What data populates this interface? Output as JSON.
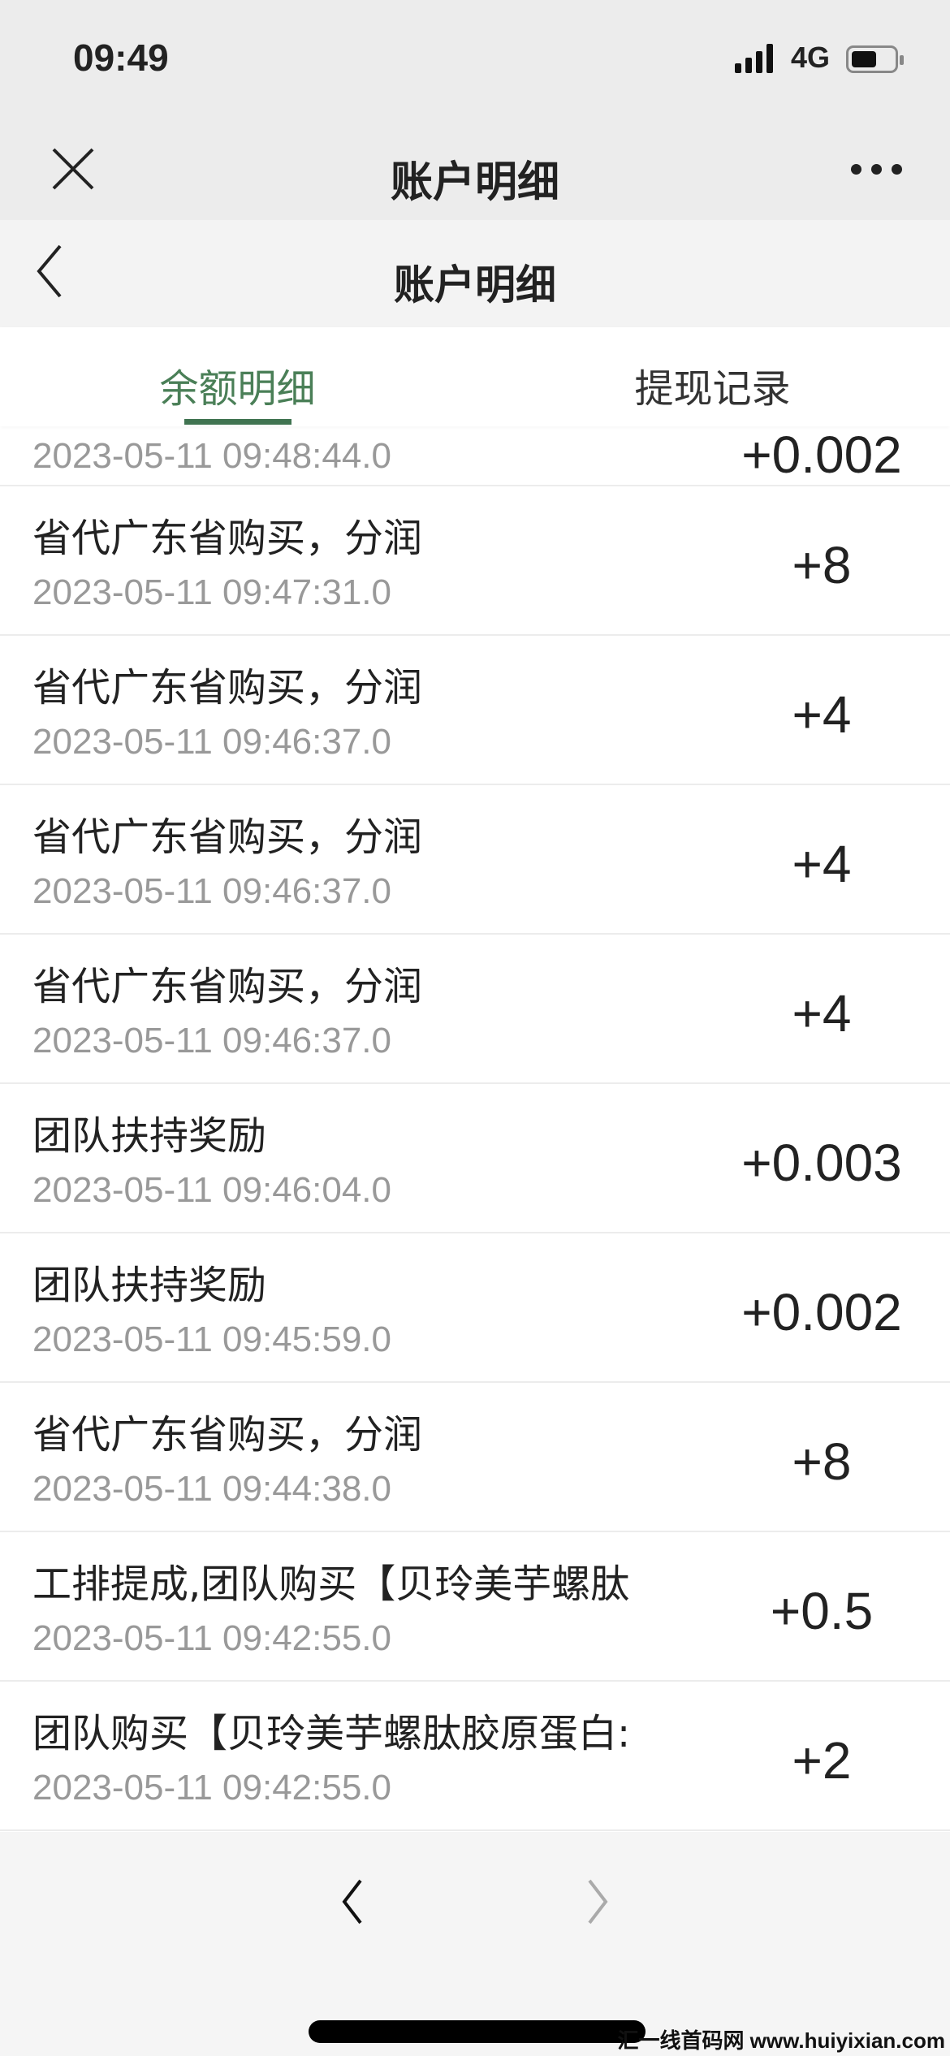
{
  "status_bar": {
    "time": "09:49",
    "network": "4G",
    "battery_percent": 60
  },
  "webview_nav": {
    "title": "账户明细",
    "close_icon": "close-icon",
    "more_icon": "more-dots-icon"
  },
  "page_nav": {
    "title": "账户明细",
    "back_icon": "chevron-left-icon"
  },
  "tabs": [
    {
      "label": "余额明细",
      "active": true
    },
    {
      "label": "提现记录",
      "active": false
    }
  ],
  "accent_color": "#3f7350",
  "records": [
    {
      "title": "",
      "date": "2023-05-11 09:48:44.0",
      "amount": "+0.002"
    },
    {
      "title": "省代广东省购买，分润",
      "date": "2023-05-11 09:47:31.0",
      "amount": "+8"
    },
    {
      "title": "省代广东省购买，分润",
      "date": "2023-05-11 09:46:37.0",
      "amount": "+4"
    },
    {
      "title": "省代广东省购买，分润",
      "date": "2023-05-11 09:46:37.0",
      "amount": "+4"
    },
    {
      "title": "省代广东省购买，分润",
      "date": "2023-05-11 09:46:37.0",
      "amount": "+4"
    },
    {
      "title": "团队扶持奖励",
      "date": "2023-05-11 09:46:04.0",
      "amount": "+0.003"
    },
    {
      "title": "团队扶持奖励",
      "date": "2023-05-11 09:45:59.0",
      "amount": "+0.002"
    },
    {
      "title": "省代广东省购买，分润",
      "date": "2023-05-11 09:44:38.0",
      "amount": "+8"
    },
    {
      "title": "工排提成,团队购买【贝玲美芋螺肽",
      "date": "2023-05-11 09:42:55.0",
      "amount": "+0.5"
    },
    {
      "title": "团队购买【贝玲美芋螺肽胶原蛋白:",
      "date": "2023-05-11 09:42:55.0",
      "amount": "+2"
    }
  ],
  "pager": {
    "prev_icon": "chevron-left-icon",
    "next_icon": "chevron-right-icon",
    "next_enabled": false
  },
  "watermark": "汇一线首码网 www.huiyixian.com"
}
